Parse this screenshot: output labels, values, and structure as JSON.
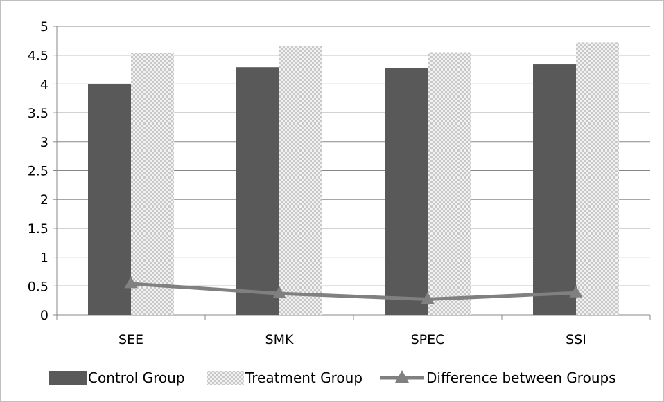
{
  "chart_data": {
    "type": "bar",
    "categories": [
      "SEE",
      "SMK",
      "SPEC",
      "SSI"
    ],
    "series": [
      {
        "name": "Control Group",
        "type": "bar",
        "color": "#595959",
        "pattern": "solid",
        "values": [
          4.0,
          4.29,
          4.28,
          4.34
        ]
      },
      {
        "name": "Treatment Group",
        "type": "bar",
        "color": "#d9d9d9",
        "pattern": "checkered",
        "values": [
          4.54,
          4.66,
          4.55,
          4.72
        ]
      },
      {
        "name": "Difference between Groups",
        "type": "line",
        "marker": "triangle",
        "color": "#808080",
        "values": [
          0.54,
          0.37,
          0.27,
          0.38
        ]
      }
    ],
    "ylim": [
      0,
      5
    ],
    "yticks": [
      "0",
      "0.5",
      "1",
      "1.5",
      "2",
      "2.5",
      "3",
      "3.5",
      "4",
      "4.5",
      "5"
    ],
    "grid": true,
    "legend": "bottom"
  }
}
